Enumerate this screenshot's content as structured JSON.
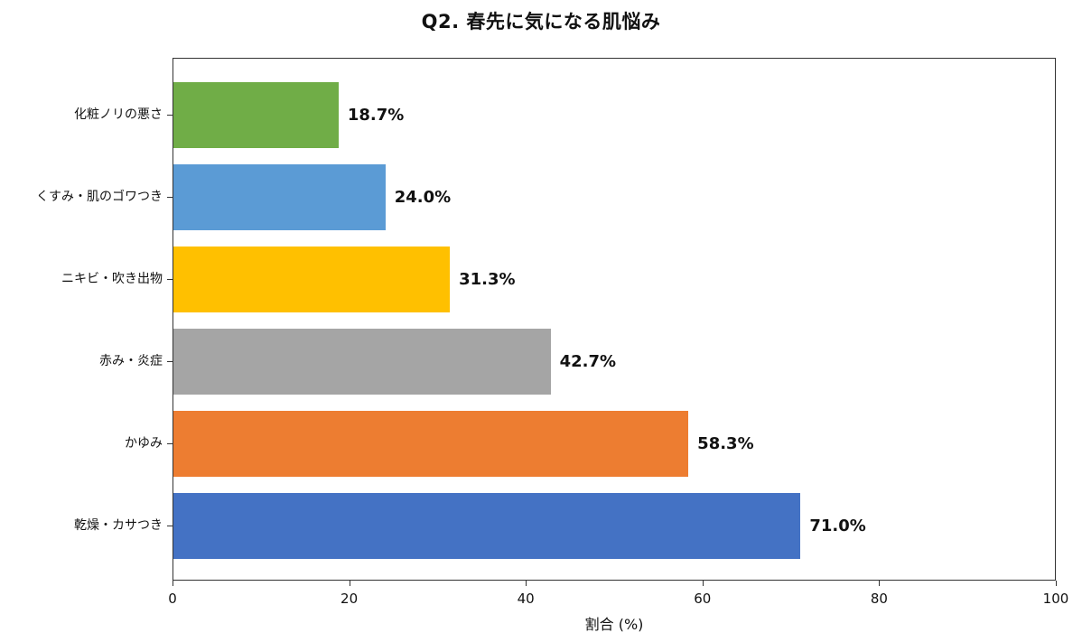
{
  "chart_data": {
    "type": "bar",
    "orientation": "horizontal",
    "title": "Q2. 春先に気になる肌悩み",
    "xlabel": "割合 (%)",
    "ylabel": "",
    "xlim": [
      0,
      100
    ],
    "xticks": [
      "0",
      "20",
      "40",
      "60",
      "80",
      "100"
    ],
    "grid": false,
    "legend": null,
    "categories": [
      "化粧ノリの悪さ",
      "くすみ・肌のゴワつき",
      "ニキビ・吹き出物",
      "赤み・炎症",
      "かゆみ",
      "乾燥・カサつき"
    ],
    "values": [
      18.7,
      24.0,
      31.3,
      42.7,
      58.3,
      71.0
    ],
    "value_labels": [
      "18.7%",
      "24.0%",
      "31.3%",
      "42.7%",
      "58.3%",
      "71.0%"
    ],
    "colors": [
      "#70AD47",
      "#5B9BD5",
      "#FFC000",
      "#A5A5A5",
      "#ED7D31",
      "#4472C4"
    ]
  }
}
